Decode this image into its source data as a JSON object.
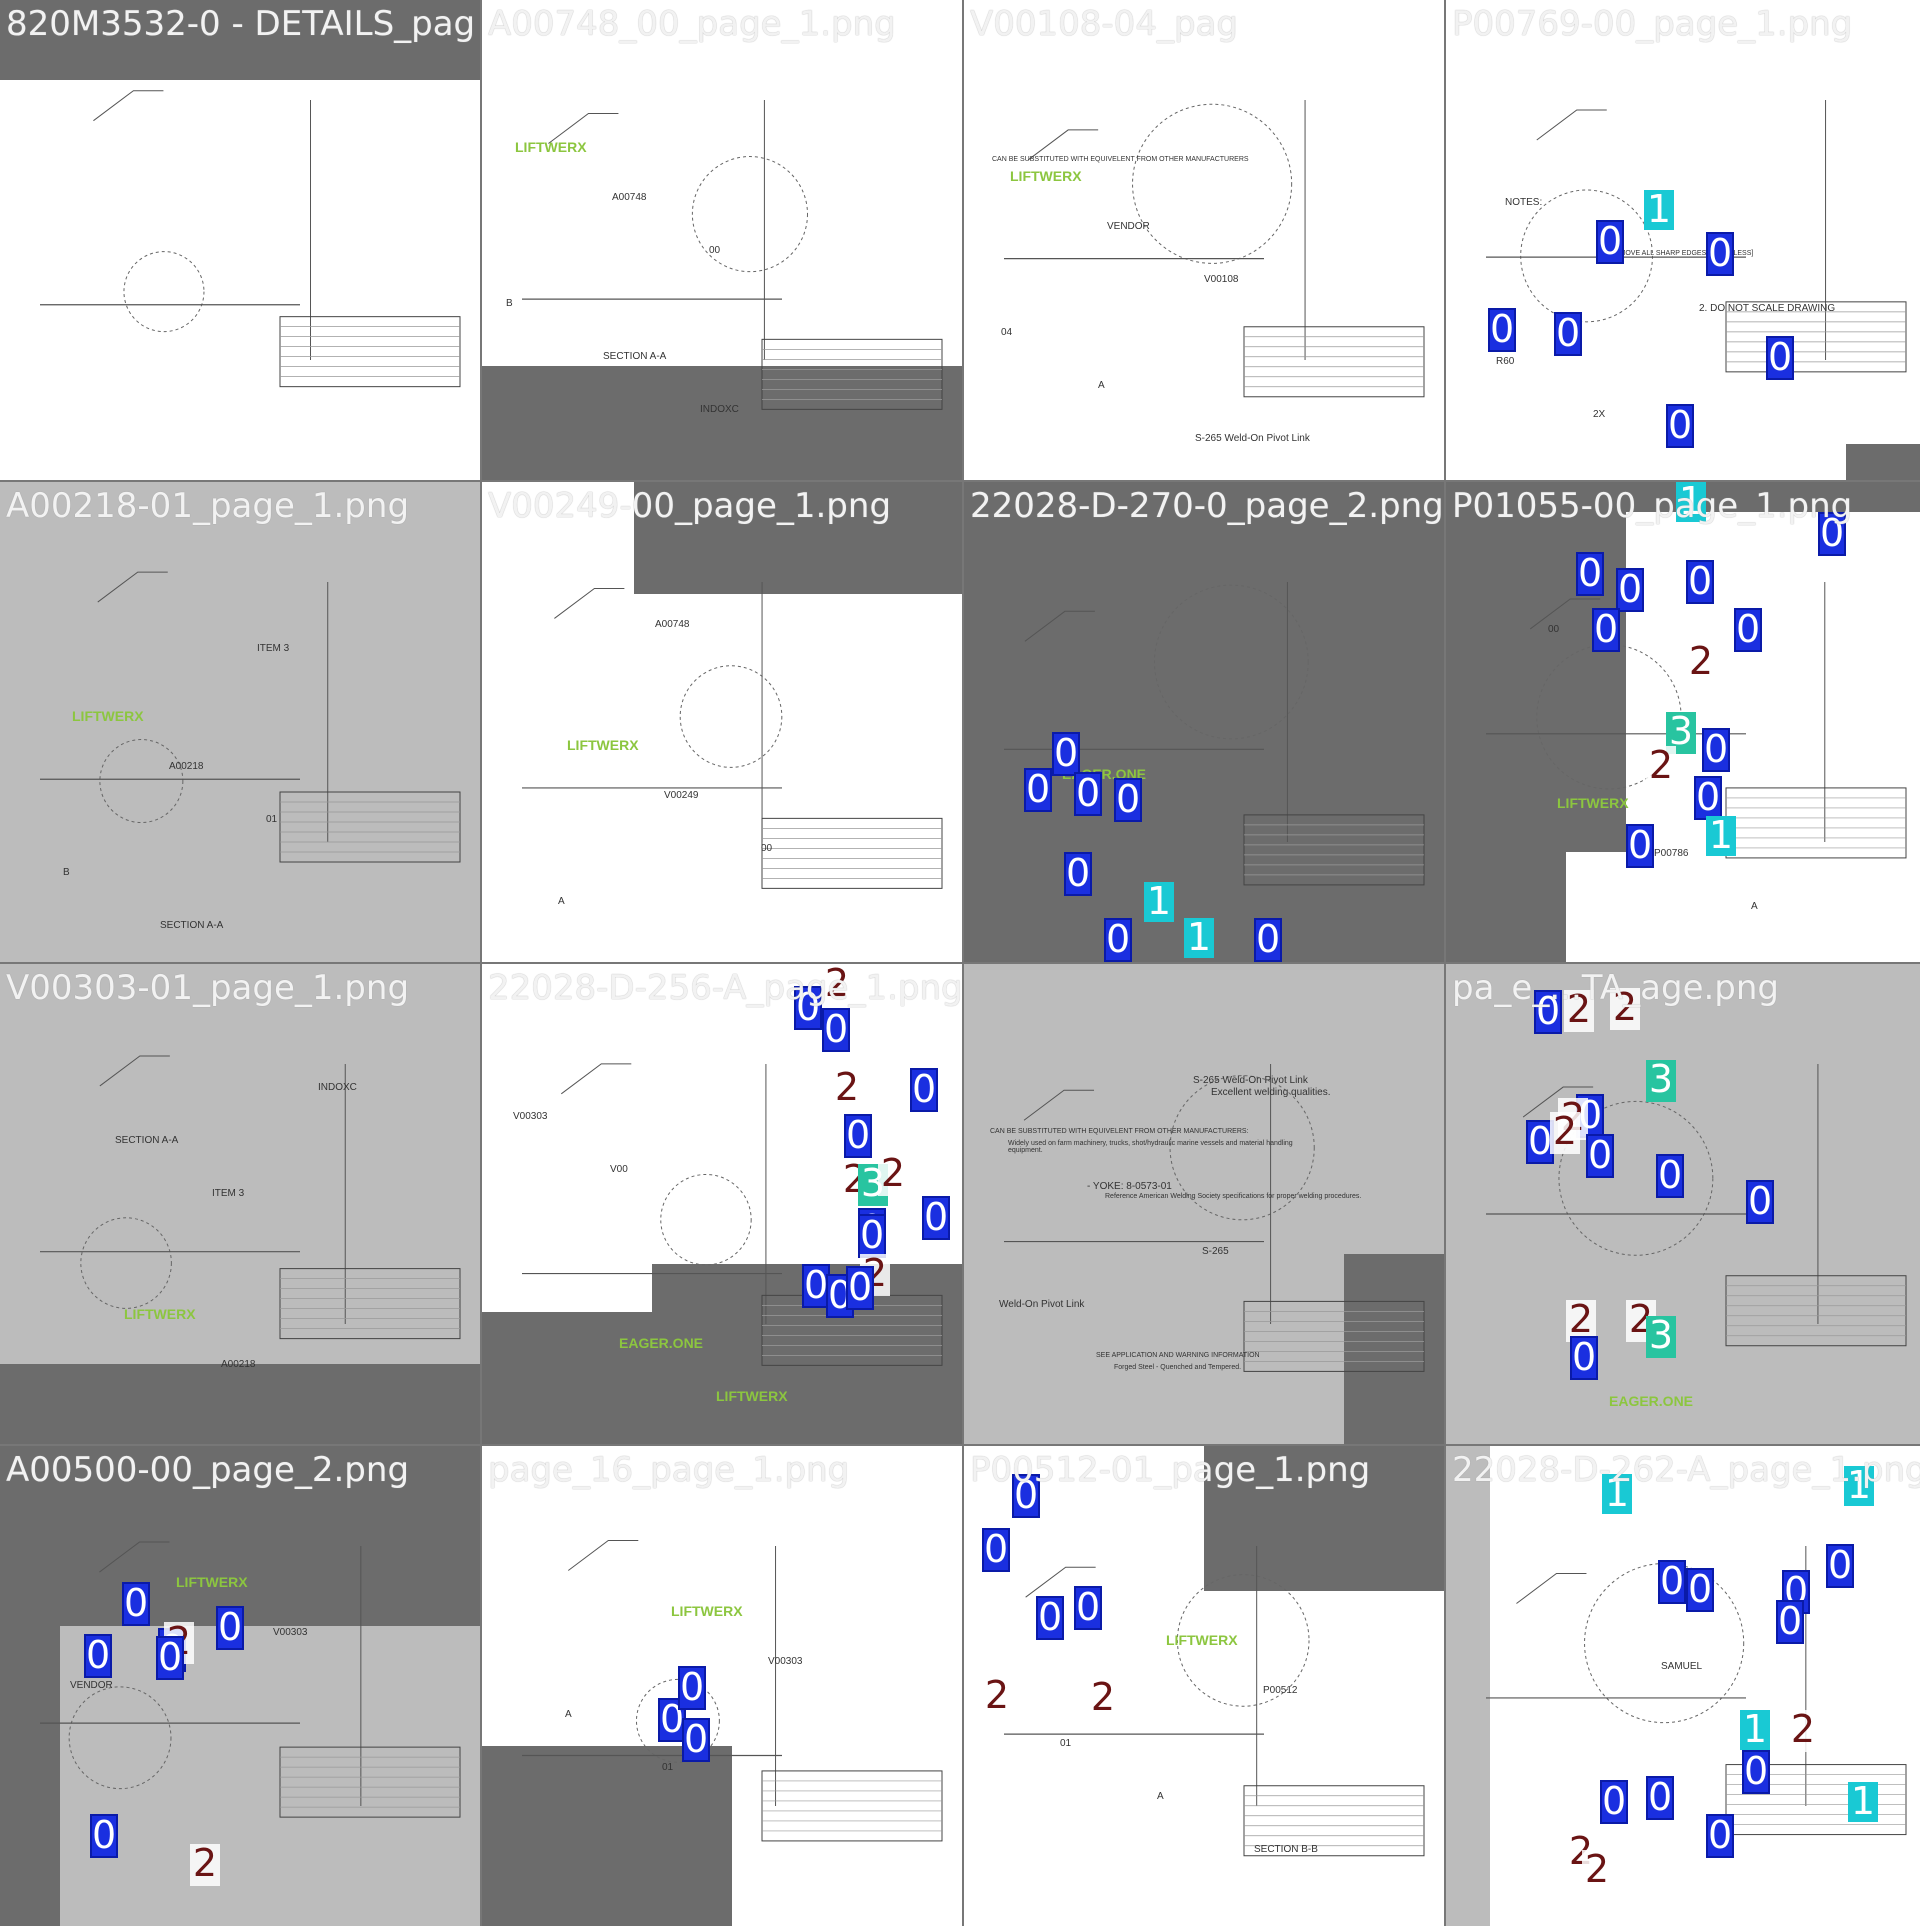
{
  "colors": {
    "background": "#777777",
    "label_text": "#f2f2f2",
    "badge_0": "#1a2fe0",
    "badge_1": "#19c9d4",
    "badge_2_text": "#6a1414",
    "badge_3": "#28c4a0",
    "brand_green": "#8cc63f",
    "warning_yellow": "#f4d20a",
    "ring_red": "#c0182a"
  },
  "tiles": [
    {
      "label": "820M3532-0 - DETAILS_pag",
      "texts": []
    },
    {
      "label": "A00748_00_page_1.png",
      "texts": [
        "LIFTWERX",
        "A00748",
        "00",
        "B",
        "SECTION A-A",
        "INDOXC"
      ]
    },
    {
      "label": "V00108-04_pag",
      "texts": [
        "LIFTWERX",
        "VENDOR",
        "V00108",
        "04",
        "A",
        "S-265 Weld-On Pivot Link",
        "CAN BE SUBSTITUTED WITH EQUIVELENT FROM OTHER MANUFACTURERS"
      ]
    },
    {
      "label": "P00769-00_page_1.png",
      "texts": [
        "NOTES:",
        "1. REMOVE ALL SHARP EDGES [R1 OR LESS]",
        "2. DO NOT SCALE DRAWING",
        "R60",
        "2X"
      ]
    },
    {
      "label": "A00218-01_page_1.png",
      "texts": [
        "LIFTWERX",
        "A00218",
        "01",
        "B",
        "SECTION A-A",
        "ITEM 3"
      ]
    },
    {
      "label": "V00249-00_page_1.png",
      "texts": [
        "LIFTWERX",
        "V00249",
        "00",
        "A",
        "A00748"
      ]
    },
    {
      "label": "22028-D-270-0_page_2.png",
      "texts": [
        "EAGER.ONE"
      ]
    },
    {
      "label": "P01055-00_page_1.png",
      "texts": [
        "LIFTWERX",
        "P00786",
        "A",
        "00"
      ]
    },
    {
      "label": "V00303-01_page_1.png",
      "texts": [
        "LIFTWERX",
        "A00218",
        "INDOXC",
        "SECTION A-A",
        "ITEM 3"
      ]
    },
    {
      "label": "22028-D-256-A_page_1.png",
      "texts": [
        "EAGER.ONE",
        "LIFTWERX",
        "V00303",
        "V00"
      ]
    },
    {
      "label": "",
      "texts": [
        "Forged Steel - Quenched and Tempered.",
        "Excellent welding qualities.",
        "Widely used on farm machinery, trucks, shot/hydraulic marine vessels and material handling equipment.",
        "Reference American Welding Society specifications for proper welding procedures.",
        "S-265",
        "Weld-On Pivot Link",
        "SEE APPLICATION AND WARNING INFORMATION",
        "S-265 Weld-On Pivot Link",
        "CAN BE SUBSTITUTED WITH EQUIVELENT FROM OTHER MANUFACTURERS:",
        "- YOKE: 8-0573-01"
      ]
    },
    {
      "label": "pa_e_...TA_age.png",
      "texts": [
        "EAGER.ONE"
      ]
    },
    {
      "label": "A00500-00_page_2.png",
      "texts": [
        "LIFTWERX",
        "V00303",
        "VENDOR"
      ]
    },
    {
      "label": "page_16_page_1.png",
      "texts": [
        "LIFTWERX",
        "V00303",
        "A",
        "01"
      ]
    },
    {
      "label": "P00512-01_page_1.png",
      "texts": [
        "LIFTWERX",
        "P00512",
        "01",
        "A",
        "SECTION B-B"
      ]
    },
    {
      "label": "22028-D-262-A_page_1.png",
      "texts": [
        "SAMUEL"
      ]
    }
  ],
  "badges": [
    {
      "tile": 3,
      "value": "1"
    },
    {
      "tile": 3,
      "value": "0"
    },
    {
      "tile": 3,
      "value": "0"
    },
    {
      "tile": 3,
      "value": "0"
    },
    {
      "tile": 3,
      "value": "0"
    },
    {
      "tile": 3,
      "value": "0"
    },
    {
      "tile": 3,
      "value": "0"
    },
    {
      "tile": 6,
      "value": "0"
    },
    {
      "tile": 6,
      "value": "0"
    },
    {
      "tile": 6,
      "value": "0"
    },
    {
      "tile": 6,
      "value": "0"
    },
    {
      "tile": 6,
      "value": "0"
    },
    {
      "tile": 6,
      "value": "1"
    },
    {
      "tile": 6,
      "value": "0"
    },
    {
      "tile": 6,
      "value": "1"
    },
    {
      "tile": 6,
      "value": "0"
    },
    {
      "tile": 7,
      "value": "1"
    },
    {
      "tile": 7,
      "value": "0"
    },
    {
      "tile": 7,
      "value": "0"
    },
    {
      "tile": 7,
      "value": "0"
    },
    {
      "tile": 7,
      "value": "0"
    },
    {
      "tile": 7,
      "value": "0"
    },
    {
      "tile": 7,
      "value": "2"
    },
    {
      "tile": 7,
      "value": "3"
    },
    {
      "tile": 7,
      "value": "0"
    },
    {
      "tile": 7,
      "value": "2"
    },
    {
      "tile": 7,
      "value": "0"
    },
    {
      "tile": 7,
      "value": "0"
    },
    {
      "tile": 7,
      "value": "1"
    },
    {
      "tile": 7,
      "value": "0"
    },
    {
      "tile": 9,
      "value": "2"
    },
    {
      "tile": 9,
      "value": "0"
    },
    {
      "tile": 9,
      "value": "0"
    },
    {
      "tile": 9,
      "value": "2"
    },
    {
      "tile": 9,
      "value": "0"
    },
    {
      "tile": 9,
      "value": "0"
    },
    {
      "tile": 9,
      "value": "2"
    },
    {
      "tile": 9,
      "value": "0"
    },
    {
      "tile": 9,
      "value": "3"
    },
    {
      "tile": 9,
      "value": "2"
    },
    {
      "tile": 9,
      "value": "0"
    },
    {
      "tile": 9,
      "value": "2"
    },
    {
      "tile": 9,
      "value": "0"
    },
    {
      "tile": 9,
      "value": "0"
    },
    {
      "tile": 9,
      "value": "0"
    },
    {
      "tile": 9,
      "value": "0"
    },
    {
      "tile": 11,
      "value": "0"
    },
    {
      "tile": 11,
      "value": "2"
    },
    {
      "tile": 11,
      "value": "2"
    },
    {
      "tile": 11,
      "value": "0"
    },
    {
      "tile": 11,
      "value": "3"
    },
    {
      "tile": 11,
      "value": "2"
    },
    {
      "tile": 11,
      "value": "0"
    },
    {
      "tile": 11,
      "value": "2"
    },
    {
      "tile": 11,
      "value": "0"
    },
    {
      "tile": 11,
      "value": "0"
    },
    {
      "tile": 11,
      "value": "0"
    },
    {
      "tile": 11,
      "value": "2"
    },
    {
      "tile": 11,
      "value": "2"
    },
    {
      "tile": 11,
      "value": "0"
    },
    {
      "tile": 11,
      "value": "3"
    },
    {
      "tile": 12,
      "value": "0"
    },
    {
      "tile": 12,
      "value": "0"
    },
    {
      "tile": 12,
      "value": "2"
    },
    {
      "tile": 12,
      "value": "0"
    },
    {
      "tile": 12,
      "value": "0"
    },
    {
      "tile": 12,
      "value": "0"
    },
    {
      "tile": 12,
      "value": "0"
    },
    {
      "tile": 12,
      "value": "2"
    },
    {
      "tile": 13,
      "value": "0"
    },
    {
      "tile": 13,
      "value": "0"
    },
    {
      "tile": 13,
      "value": "0"
    },
    {
      "tile": 14,
      "value": "0"
    },
    {
      "tile": 14,
      "value": "0"
    },
    {
      "tile": 14,
      "value": "0"
    },
    {
      "tile": 14,
      "value": "0"
    },
    {
      "tile": 14,
      "value": "2"
    },
    {
      "tile": 14,
      "value": "2"
    },
    {
      "tile": 15,
      "value": "1"
    },
    {
      "tile": 15,
      "value": "1"
    },
    {
      "tile": 15,
      "value": "0"
    },
    {
      "tile": 15,
      "value": "0"
    },
    {
      "tile": 15,
      "value": "0"
    },
    {
      "tile": 15,
      "value": "0"
    },
    {
      "tile": 15,
      "value": "0"
    },
    {
      "tile": 15,
      "value": "1"
    },
    {
      "tile": 15,
      "value": "2"
    },
    {
      "tile": 15,
      "value": "0"
    },
    {
      "tile": 15,
      "value": "0"
    },
    {
      "tile": 15,
      "value": "0"
    },
    {
      "tile": 15,
      "value": "2"
    },
    {
      "tile": 15,
      "value": "2"
    },
    {
      "tile": 15,
      "value": "0"
    },
    {
      "tile": 15,
      "value": "1"
    }
  ]
}
